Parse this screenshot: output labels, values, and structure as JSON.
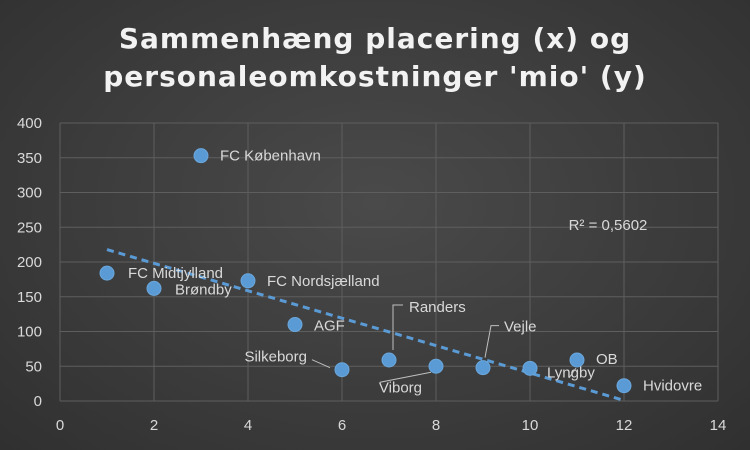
{
  "chart_data": {
    "type": "scatter",
    "title_lines": [
      "Sammenhæng placering (x) og",
      "personaleomkostninger 'mio' (y)"
    ],
    "xlabel": "",
    "ylabel": "",
    "xlim": [
      0,
      14
    ],
    "ylim": [
      0,
      400
    ],
    "x_ticks": [
      0,
      2,
      4,
      6,
      8,
      10,
      12,
      14
    ],
    "y_ticks": [
      0,
      50,
      100,
      150,
      200,
      250,
      300,
      350,
      400
    ],
    "grid": true,
    "points": [
      {
        "x": 1,
        "y": 184,
        "label": "FC Midtjylland"
      },
      {
        "x": 2,
        "y": 162,
        "label": "Brøndby"
      },
      {
        "x": 3,
        "y": 353,
        "label": "FC København"
      },
      {
        "x": 4,
        "y": 173,
        "label": "FC Nordsjælland"
      },
      {
        "x": 5,
        "y": 110,
        "label": "AGF"
      },
      {
        "x": 6,
        "y": 45,
        "label": "Silkeborg"
      },
      {
        "x": 7,
        "y": 59,
        "label": "Randers"
      },
      {
        "x": 8,
        "y": 50,
        "label": "Viborg"
      },
      {
        "x": 9,
        "y": 48,
        "label": "Vejle"
      },
      {
        "x": 10,
        "y": 47,
        "label": "Lyngby"
      },
      {
        "x": 11,
        "y": 59,
        "label": "OB"
      },
      {
        "x": 12,
        "y": 22,
        "label": "Hvidovre"
      }
    ],
    "trendline": {
      "type": "linear",
      "style": "dashed",
      "r_squared_label": "R² = 0,5602"
    },
    "colors": {
      "marker": "#5b9bd5",
      "trendline": "#5b9bd5",
      "grid": "#5e5e5e",
      "text": "#d9d9d9"
    }
  }
}
